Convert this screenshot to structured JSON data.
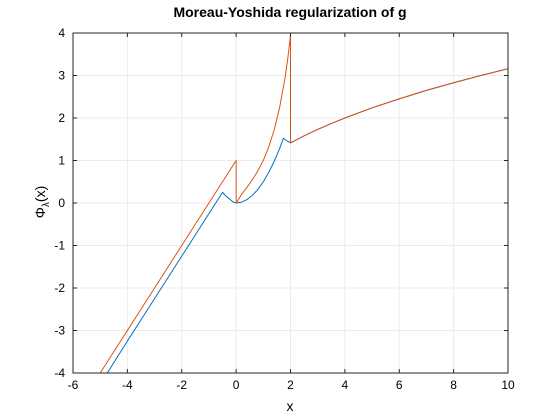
{
  "chart_data": {
    "type": "line",
    "title": "Moreau-Yoshida regularization of g",
    "xlabel": "x",
    "ylabel_main": "Φ",
    "ylabel_sub": "λ",
    "ylabel_suffix": "(x)",
    "xlim": [
      -6,
      10
    ],
    "ylim": [
      -4,
      4
    ],
    "xticks": [
      -6,
      -4,
      -2,
      0,
      2,
      4,
      6,
      8,
      10
    ],
    "yticks": [
      -4,
      -3,
      -2,
      -1,
      0,
      1,
      2,
      3,
      4
    ],
    "grid": true,
    "legend": "none",
    "series": [
      {
        "color": "#0072bd",
        "points": [
          [
            -4.74,
            -4.0
          ],
          [
            -4.0,
            -3.25
          ],
          [
            -3.0,
            -2.25
          ],
          [
            -2.0,
            -1.25
          ],
          [
            -1.0,
            -0.25
          ],
          [
            -0.5,
            0.25
          ],
          [
            -0.4,
            0.18
          ],
          [
            -0.3,
            0.12
          ],
          [
            -0.2,
            0.07
          ],
          [
            -0.1,
            0.02
          ],
          [
            0.0,
            0.0
          ],
          [
            0.2,
            0.02
          ],
          [
            0.4,
            0.08
          ],
          [
            0.6,
            0.18
          ],
          [
            0.8,
            0.32
          ],
          [
            1.0,
            0.5
          ],
          [
            1.2,
            0.72
          ],
          [
            1.4,
            0.98
          ],
          [
            1.6,
            1.28
          ],
          [
            1.74,
            1.52
          ],
          [
            1.9,
            1.45
          ],
          [
            2.0,
            1.42
          ],
          [
            2.2,
            1.48
          ],
          [
            2.5,
            1.58
          ],
          [
            3.0,
            1.73
          ],
          [
            3.5,
            1.87
          ],
          [
            4.0,
            2.0
          ],
          [
            5.0,
            2.24
          ],
          [
            6.0,
            2.45
          ],
          [
            7.0,
            2.65
          ],
          [
            8.0,
            2.83
          ],
          [
            9.0,
            3.0
          ],
          [
            10.0,
            3.16
          ]
        ]
      },
      {
        "color": "#d95319",
        "points": [
          [
            -5.0,
            -4.0
          ],
          [
            -4.0,
            -3.0
          ],
          [
            -3.0,
            -2.0
          ],
          [
            -2.0,
            -1.0
          ],
          [
            -1.0,
            0.0
          ],
          [
            0.0,
            1.0
          ],
          [
            0.0,
            0.0
          ],
          [
            0.1,
            0.1
          ],
          [
            0.2,
            0.2
          ],
          [
            0.4,
            0.37
          ],
          [
            0.6,
            0.55
          ],
          [
            0.8,
            0.76
          ],
          [
            1.0,
            1.0
          ],
          [
            1.2,
            1.32
          ],
          [
            1.4,
            1.72
          ],
          [
            1.6,
            2.25
          ],
          [
            1.8,
            2.95
          ],
          [
            1.9,
            3.4
          ],
          [
            2.0,
            3.95
          ],
          [
            2.0,
            1.41
          ],
          [
            2.2,
            1.48
          ],
          [
            2.5,
            1.58
          ],
          [
            3.0,
            1.73
          ],
          [
            3.5,
            1.87
          ],
          [
            4.0,
            2.0
          ],
          [
            5.0,
            2.24
          ],
          [
            6.0,
            2.45
          ],
          [
            7.0,
            2.65
          ],
          [
            8.0,
            2.83
          ],
          [
            9.0,
            3.0
          ],
          [
            10.0,
            3.16
          ]
        ]
      }
    ]
  }
}
